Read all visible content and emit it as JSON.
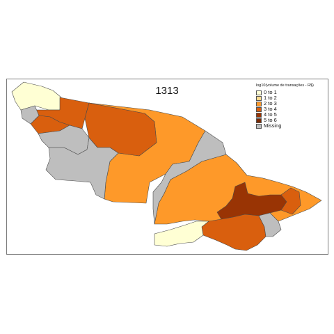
{
  "title": "1313",
  "legend": {
    "title": "log10(volume de transações - R$)",
    "items": [
      {
        "label": "0 to 1",
        "color": "#FFFFD4"
      },
      {
        "label": "1 to 2",
        "color": "#FED98E"
      },
      {
        "label": "2 to 3",
        "color": "#FE9929"
      },
      {
        "label": "3 to 4",
        "color": "#D95F0E"
      },
      {
        "label": "4 to 5",
        "color": "#993404"
      },
      {
        "label": "5 to 6",
        "color": "#7A2A03"
      },
      {
        "label": "Missing",
        "color": "#BEBEBE"
      }
    ]
  },
  "regions": [
    {
      "name": "northwest-tip",
      "class": "0 to 1",
      "color": "#FFFFD4"
    },
    {
      "name": "north-west-band",
      "class": "3 to 4",
      "color": "#D95F0E"
    },
    {
      "name": "north-central",
      "class": "3 to 4",
      "color": "#D95F0E"
    },
    {
      "name": "west-small",
      "class": "3 to 4",
      "color": "#D95F0E"
    },
    {
      "name": "west-grey-1",
      "class": "Missing",
      "color": "#BEBEBE"
    },
    {
      "name": "west-grey-2",
      "class": "Missing",
      "color": "#BEBEBE"
    },
    {
      "name": "west-grey-3",
      "class": "Missing",
      "color": "#BEBEBE"
    },
    {
      "name": "central-large",
      "class": "2 to 3",
      "color": "#FE9929"
    },
    {
      "name": "central-grey",
      "class": "Missing",
      "color": "#BEBEBE"
    },
    {
      "name": "east-large",
      "class": "2 to 3",
      "color": "#FE9929"
    },
    {
      "name": "east-dark",
      "class": "4 to 5",
      "color": "#993404"
    },
    {
      "name": "southeast",
      "class": "3 to 4",
      "color": "#D95F0E"
    },
    {
      "name": "south-pale",
      "class": "0 to 1",
      "color": "#FFFFD4"
    },
    {
      "name": "east-tip",
      "class": "2 to 3",
      "color": "#FE9929"
    },
    {
      "name": "east-grey",
      "class": "Missing",
      "color": "#BEBEBE"
    }
  ]
}
